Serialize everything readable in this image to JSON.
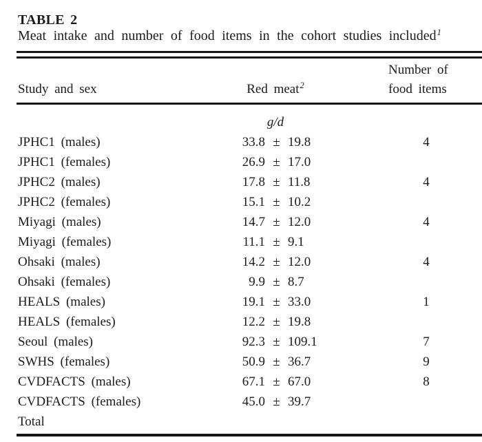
{
  "table": {
    "label": "TABLE 2",
    "title": "Meat intake and number of food items in the cohort studies included",
    "title_footnote_marker": "1",
    "columns": {
      "study": "Study and sex",
      "red_meat": "Red meat",
      "red_meat_footnote_marker": "2",
      "food_items_line1": "Number of",
      "food_items_line2": "food items"
    },
    "unit_row": "g/d",
    "rows": [
      {
        "study": "JPHC1 (males)",
        "mean": "33.8",
        "pm": "±",
        "sd": "19.8",
        "items": "4"
      },
      {
        "study": "JPHC1 (females)",
        "mean": "26.9",
        "pm": "±",
        "sd": "17.0",
        "items": ""
      },
      {
        "study": "JPHC2 (males)",
        "mean": "17.8",
        "pm": "±",
        "sd": "11.8",
        "items": "4"
      },
      {
        "study": "JPHC2 (females)",
        "mean": "15.1",
        "pm": "±",
        "sd": "10.2",
        "items": ""
      },
      {
        "study": "Miyagi (males)",
        "mean": "14.7",
        "pm": "±",
        "sd": "12.0",
        "items": "4"
      },
      {
        "study": "Miyagi (females)",
        "mean": "11.1",
        "pm": "±",
        "sd": "9.1",
        "items": ""
      },
      {
        "study": "Ohsaki (males)",
        "mean": "14.2",
        "pm": "±",
        "sd": "12.0",
        "items": "4"
      },
      {
        "study": "Ohsaki (females)",
        "mean": "9.9",
        "pm": "±",
        "sd": "8.7",
        "items": ""
      },
      {
        "study": "HEALS (males)",
        "mean": "19.1",
        "pm": "±",
        "sd": "33.0",
        "items": "1"
      },
      {
        "study": "HEALS (females)",
        "mean": "12.2",
        "pm": "±",
        "sd": "19.8",
        "items": ""
      },
      {
        "study": "Seoul (males)",
        "mean": "92.3",
        "pm": "±",
        "sd": "109.1",
        "items": "7"
      },
      {
        "study": "SWHS (females)",
        "mean": "50.9",
        "pm": "±",
        "sd": "36.7",
        "items": "9"
      },
      {
        "study": "CVDFACTS (males)",
        "mean": "67.1",
        "pm": "±",
        "sd": "67.0",
        "items": "8"
      },
      {
        "study": "CVDFACTS (females)",
        "mean": "45.0",
        "pm": "±",
        "sd": "39.7",
        "items": ""
      },
      {
        "study": "Total",
        "mean": "",
        "pm": "",
        "sd": "",
        "items": ""
      }
    ],
    "colors": {
      "text": "#1b1b1b",
      "rule": "#161616",
      "background": "#ffffff"
    }
  }
}
